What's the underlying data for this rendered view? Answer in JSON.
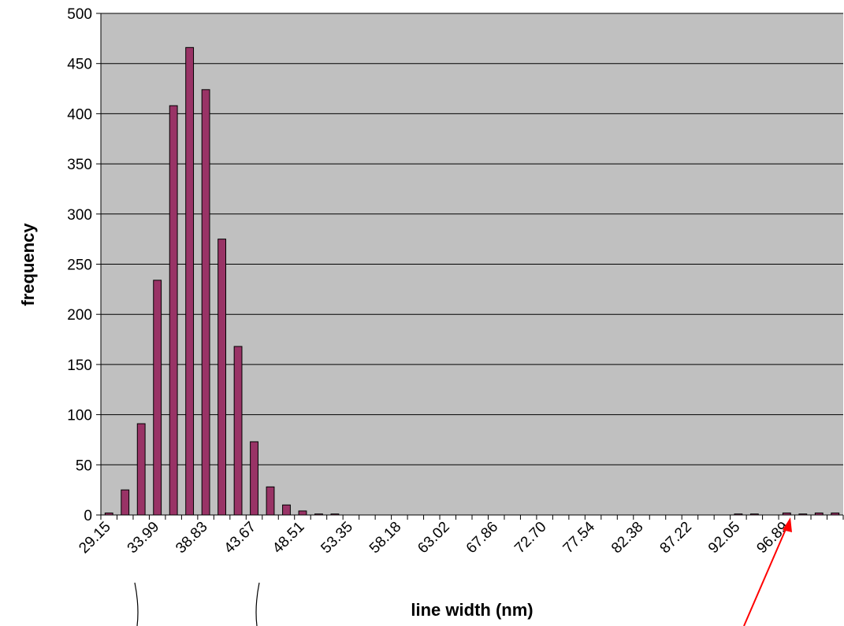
{
  "chart_data": {
    "type": "bar",
    "xlabel": "line width (nm)",
    "ylabel": "frequency",
    "ylim": [
      0,
      500
    ],
    "yticks": [
      0,
      50,
      100,
      150,
      200,
      250,
      300,
      350,
      400,
      450,
      500
    ],
    "grid": true,
    "legend": "none",
    "x_tick_labels": [
      "29.15",
      "33.99",
      "38.83",
      "43.67",
      "48.51",
      "53.35",
      "58.18",
      "63.02",
      "67.86",
      "72.70",
      "77.54",
      "82.38",
      "87.22",
      "92.05",
      "96.89"
    ],
    "values": [
      2,
      25,
      91,
      234,
      408,
      466,
      424,
      275,
      168,
      73,
      28,
      10,
      4,
      1,
      1,
      0,
      0,
      0,
      0,
      0,
      0,
      0,
      0,
      0,
      0,
      0,
      0,
      0,
      0,
      0,
      0,
      0,
      0,
      0,
      0,
      0,
      0,
      0,
      0,
      1,
      1,
      0,
      2,
      1,
      2,
      2
    ],
    "colors": {
      "bar_fill": "#993366",
      "plot_bg": "#c0c0c0",
      "grid": "#000000",
      "arrow": "#ff0000"
    }
  }
}
